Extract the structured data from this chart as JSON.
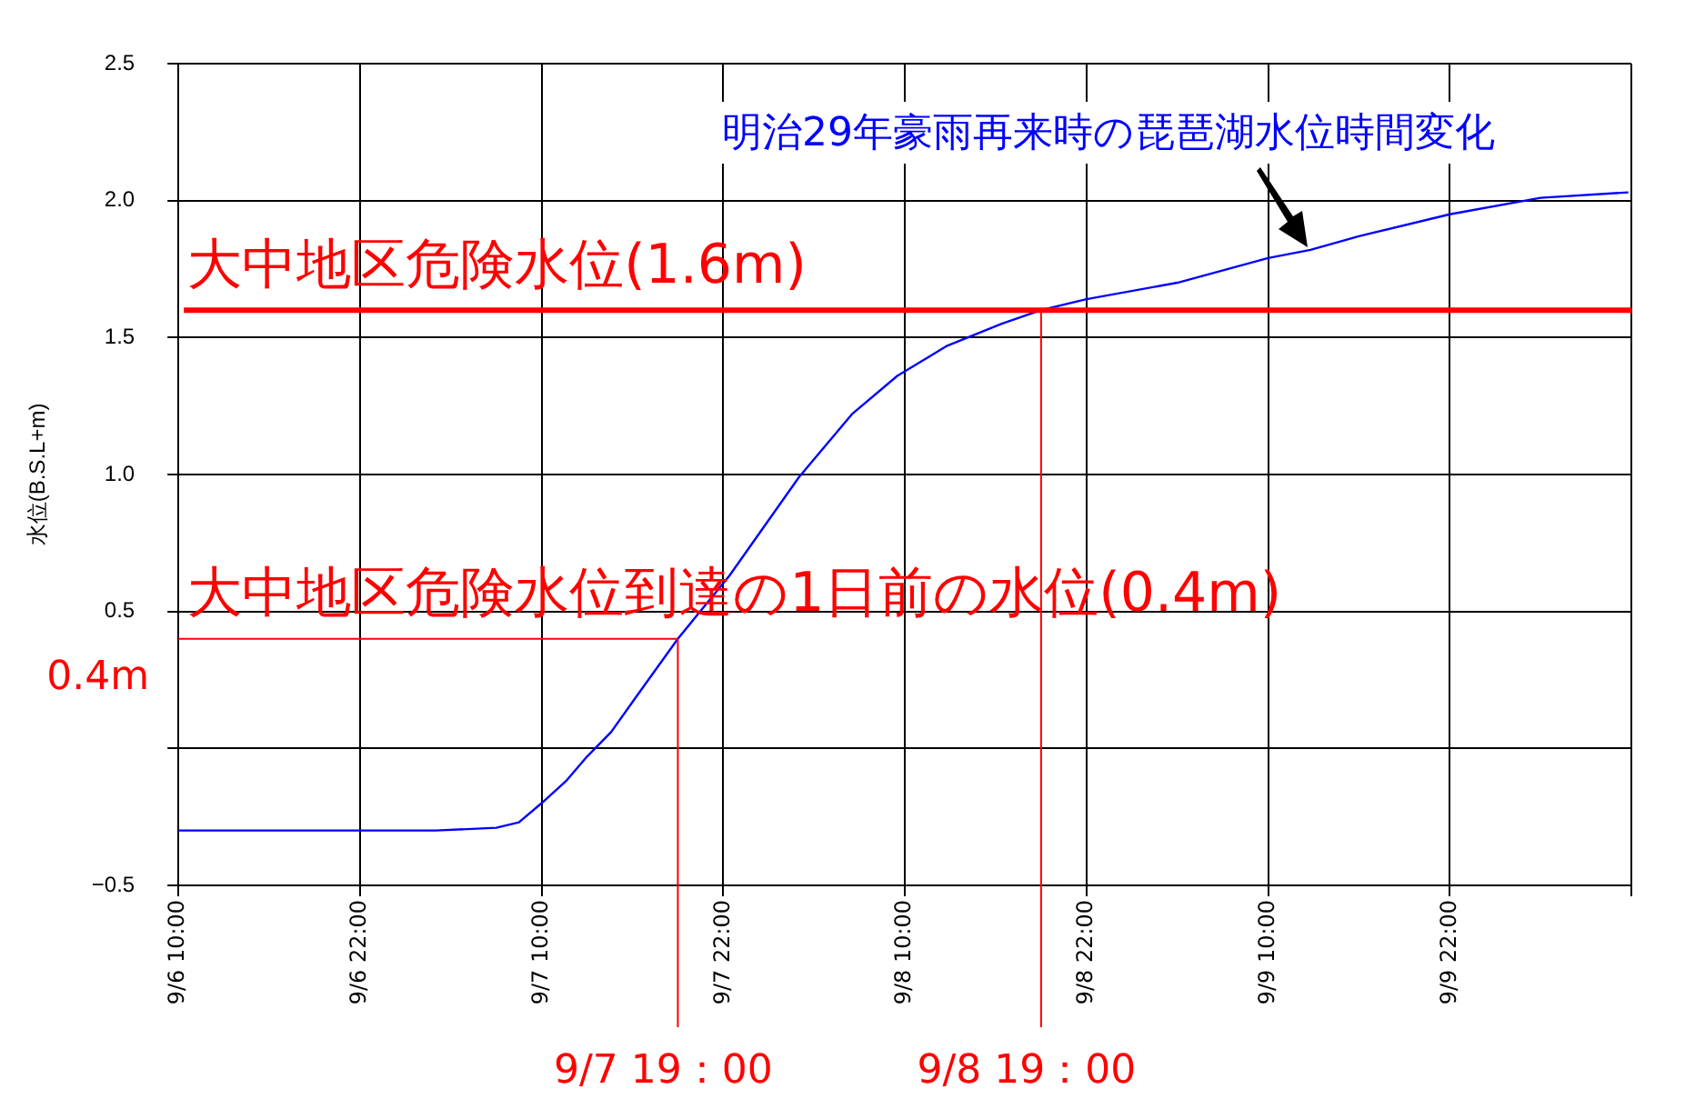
{
  "chart_data": {
    "type": "line",
    "ylabel": "水位(B.S.L+m)",
    "series": [
      {
        "name": "明治29年豪雨再来時の琵琶湖水位時間変化",
        "color": "#0000ff",
        "x": [
          "--09-06T10:00",
          "--09-07T03:00",
          "--09-07T07:00",
          "--09-07T08:30",
          "--09-07T10:00",
          "--09-07T11:36",
          "--09-07T13:00",
          "--09-07T14:36",
          "--09-07T16:24",
          "--09-07T19:00",
          "--09-07T22:24",
          "--09-08T03:00",
          "--09-08T06:30",
          "--09-08T09:30",
          "--09-08T12:48",
          "--09-08T16:24",
          "--09-08T19:00",
          "--09-08T22:00",
          "--09-09T04:00",
          "--09-09T10:00",
          "--09-09T12:48",
          "--09-09T16:00",
          "--09-09T22:00",
          "--09-10T04:00",
          "--09-10T09:48"
        ],
        "values": [
          -0.3,
          -0.3,
          -0.29,
          -0.27,
          -0.2,
          -0.12,
          -0.03,
          0.06,
          0.2,
          0.4,
          0.63,
          0.99,
          1.22,
          1.36,
          1.47,
          1.55,
          1.6,
          1.64,
          1.7,
          1.79,
          1.82,
          1.87,
          1.95,
          2.01,
          2.03
        ]
      }
    ],
    "xlim": [
      "--09-06T10:00",
      "--09-10T10:00"
    ],
    "xticks": [
      {
        "value": "--09-06T10:00",
        "label": "9/6 10:00"
      },
      {
        "value": "--09-06T22:00",
        "label": "9/6 22:00"
      },
      {
        "value": "--09-07T10:00",
        "label": "9/7 10:00"
      },
      {
        "value": "--09-07T22:00",
        "label": "9/7 22:00"
      },
      {
        "value": "--09-08T10:00",
        "label": "9/8 10:00"
      },
      {
        "value": "--09-08T22:00",
        "label": "9/8 22:00"
      },
      {
        "value": "--09-09T10:00",
        "label": "9/9 10:00"
      },
      {
        "value": "--09-09T22:00",
        "label": "9/9 22:00"
      },
      {
        "value": "--09-10T10:00",
        "label": null
      }
    ],
    "ylim": [
      -0.5,
      2.5
    ],
    "yticks": [
      {
        "value": -0.5,
        "label": "−0.5"
      },
      {
        "value": 0,
        "label": null
      },
      {
        "value": 0.5,
        "label": "0.5"
      },
      {
        "value": 1,
        "label": "1.0"
      },
      {
        "value": 1.5,
        "label": "1.5"
      },
      {
        "value": 2,
        "label": "2.0"
      },
      {
        "value": 2.5,
        "label": "2.5"
      }
    ],
    "grid": true,
    "legend": false,
    "marker": "none",
    "line_style": "solid",
    "ref_lines": [
      {
        "axis": "y",
        "value": 1.6,
        "label": "大中地区危険水位(1.6m)",
        "color": "#ff0000"
      },
      {
        "axis": "y",
        "value": 0.4,
        "label": "大中地区危険水位到達の1日前の水位(0.4m)",
        "color": "#ff0000"
      },
      {
        "axis": "x",
        "value": "--09-07T19:00",
        "label": "9/7 19：00",
        "color": "#ff0000"
      },
      {
        "axis": "x",
        "value": "--09-08T19:00",
        "label": "9/8 19：00",
        "color": "#ff0000"
      }
    ],
    "annotations": [
      "0.4m"
    ]
  }
}
